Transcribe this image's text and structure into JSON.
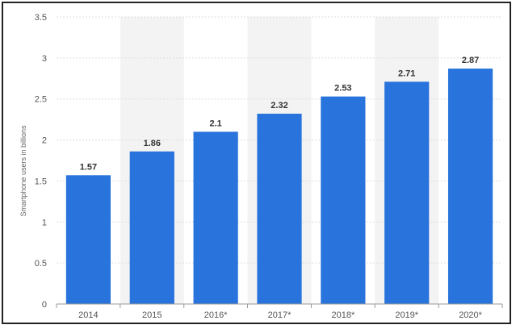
{
  "chart_data": {
    "type": "bar",
    "ylabel": "Smartphone users in billions",
    "xlabel": "",
    "title": "",
    "categories": [
      "2014",
      "2015",
      "2016*",
      "2017*",
      "2018*",
      "2019*",
      "2020*"
    ],
    "values": [
      1.57,
      1.86,
      2.1,
      2.32,
      2.53,
      2.71,
      2.87
    ],
    "value_labels": [
      "1.57",
      "1.86",
      "2.1",
      "2.32",
      "2.53",
      "2.71",
      "2.87"
    ],
    "ylim": [
      0,
      3.5
    ],
    "yticks": [
      "0",
      "0.5",
      "1",
      "1.5",
      "2",
      "2.5",
      "3",
      "3.5"
    ],
    "grid": true,
    "legend": "none",
    "colors": {
      "bar": "#2873DC",
      "band": "#F3F3F3",
      "grid": "#DDDDDD"
    }
  }
}
